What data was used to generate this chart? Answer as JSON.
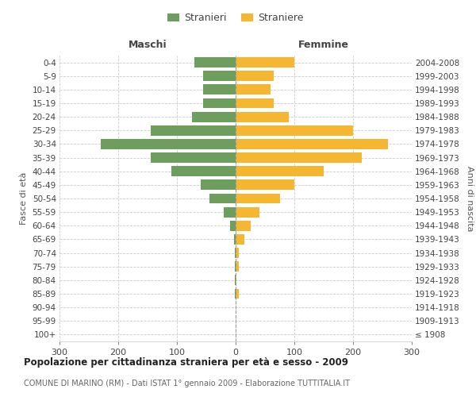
{
  "age_groups": [
    "100+",
    "95-99",
    "90-94",
    "85-89",
    "80-84",
    "75-79",
    "70-74",
    "65-69",
    "60-64",
    "55-59",
    "50-54",
    "45-49",
    "40-44",
    "35-39",
    "30-34",
    "25-29",
    "20-24",
    "15-19",
    "10-14",
    "5-9",
    "0-4"
  ],
  "birth_years": [
    "≤ 1908",
    "1909-1913",
    "1914-1918",
    "1919-1923",
    "1924-1928",
    "1929-1933",
    "1934-1938",
    "1939-1943",
    "1944-1948",
    "1949-1953",
    "1954-1958",
    "1959-1963",
    "1964-1968",
    "1969-1973",
    "1974-1978",
    "1979-1983",
    "1984-1988",
    "1989-1993",
    "1994-1998",
    "1999-2003",
    "2004-2008"
  ],
  "males": [
    0,
    0,
    0,
    1,
    1,
    2,
    2,
    3,
    10,
    20,
    45,
    60,
    110,
    145,
    230,
    145,
    75,
    55,
    55,
    55,
    70
  ],
  "females": [
    0,
    0,
    0,
    5,
    2,
    5,
    5,
    15,
    25,
    40,
    75,
    100,
    150,
    215,
    260,
    200,
    90,
    65,
    60,
    65,
    100
  ],
  "male_color": "#6d9e5e",
  "female_color": "#f5b731",
  "background_color": "#ffffff",
  "grid_color": "#cccccc",
  "title": "Popolazione per cittadinanza straniera per età e sesso - 2009",
  "subtitle": "COMUNE DI MARINO (RM) - Dati ISTAT 1° gennaio 2009 - Elaborazione TUTTITALIA.IT",
  "ylabel_left": "Fasce di età",
  "ylabel_right": "Anni di nascita",
  "maschi_label": "Maschi",
  "femmine_label": "Femmine",
  "legend_male": "Stranieri",
  "legend_female": "Straniere",
  "xlim": 300,
  "bar_height": 0.75
}
